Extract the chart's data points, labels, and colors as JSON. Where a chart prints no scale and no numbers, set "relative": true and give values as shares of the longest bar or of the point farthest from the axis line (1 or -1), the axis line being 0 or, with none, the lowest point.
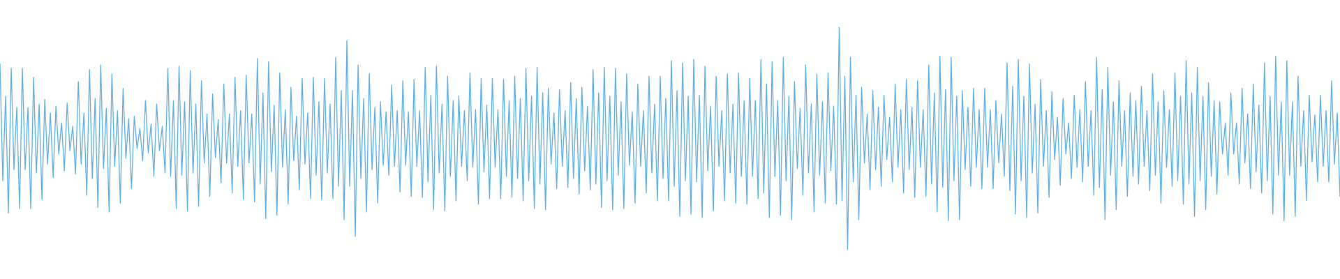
{
  "chart_data": {
    "type": "line",
    "relative": true,
    "categories": [
      null,
      null,
      null,
      null,
      null,
      null,
      null,
      null,
      null,
      null,
      null,
      null,
      null,
      null,
      null,
      null,
      null,
      null,
      null,
      null,
      null,
      null,
      null,
      null,
      null,
      null,
      null,
      null,
      null,
      null,
      null,
      null,
      null,
      null,
      null,
      null,
      null,
      null,
      null,
      null,
      null,
      null,
      null,
      null,
      null,
      null,
      null,
      null,
      null,
      null,
      null,
      null,
      null,
      null,
      null,
      null,
      null,
      null,
      null,
      null,
      null,
      null,
      null,
      null,
      null,
      null,
      null,
      null,
      null,
      null,
      null,
      null,
      null,
      null,
      null,
      null,
      null,
      null,
      null,
      null,
      null,
      null,
      null,
      null,
      null,
      null,
      null,
      null,
      null,
      null,
      null,
      null,
      null,
      null,
      null,
      null,
      null,
      null,
      null,
      null,
      null,
      null,
      null,
      null,
      null,
      null,
      null,
      null,
      null,
      null,
      null,
      null,
      null,
      null,
      null,
      null,
      null,
      null,
      null,
      null,
      null,
      null,
      null,
      null,
      null,
      null,
      null,
      null,
      null,
      null,
      null,
      null,
      null,
      null,
      null,
      null,
      null,
      null,
      null,
      null,
      null,
      null,
      null,
      null,
      null,
      null,
      null,
      null,
      null,
      null,
      null,
      null,
      null,
      null,
      null,
      null,
      null,
      null,
      null,
      null,
      null,
      null,
      null,
      null,
      null,
      null,
      null,
      null,
      null,
      null,
      null,
      null,
      null,
      null,
      null,
      null,
      null,
      null,
      null,
      null,
      null,
      null,
      null,
      null,
      null,
      null,
      null,
      null,
      null,
      null,
      null,
      null,
      null,
      null,
      null,
      null,
      null,
      null,
      null,
      null,
      null,
      null,
      null,
      null,
      null,
      null,
      null,
      null,
      null,
      null,
      null,
      null,
      null,
      null,
      null,
      null,
      null,
      null,
      null,
      null,
      null,
      null,
      null,
      null,
      null,
      null,
      null,
      null,
      null,
      null,
      null,
      null,
      null,
      null,
      null,
      null,
      null,
      null,
      null,
      null,
      null,
      null,
      null,
      null,
      null,
      null,
      null,
      null,
      null,
      null,
      null,
      null,
      null,
      null,
      null,
      null,
      null,
      null,
      null,
      null,
      null,
      null,
      null,
      null,
      null,
      null,
      null,
      null,
      null,
      null,
      null,
      null,
      null,
      null,
      null,
      null,
      null,
      null,
      null,
      null,
      null,
      null,
      null,
      null,
      null,
      null,
      null,
      null,
      null,
      null,
      null,
      null,
      null,
      null,
      null,
      null,
      null,
      null,
      null,
      null,
      null,
      null,
      null,
      null,
      null,
      null,
      null,
      null,
      null,
      null,
      null,
      null,
      null,
      null,
      null,
      null,
      null,
      null,
      null,
      null,
      null,
      null,
      null,
      null,
      null,
      null,
      null,
      null,
      null,
      null,
      null,
      null,
      null,
      null,
      null,
      null,
      null,
      null,
      null,
      null,
      null,
      null,
      null,
      null,
      null,
      null,
      null,
      null,
      null,
      null,
      null,
      null,
      null,
      null,
      null,
      null,
      null,
      null,
      null,
      null,
      null,
      null,
      null,
      null,
      null,
      null,
      null,
      null,
      null,
      null,
      null,
      null,
      null,
      null,
      null,
      null,
      null,
      null,
      null,
      null,
      null,
      null,
      null,
      null,
      null,
      null,
      null,
      null,
      null,
      null,
      null,
      null,
      null,
      null,
      null,
      null,
      null,
      null,
      null,
      null,
      null,
      null,
      null,
      null,
      null,
      null,
      null,
      null,
      null,
      null,
      null,
      null,
      null,
      null,
      null,
      null,
      null,
      null,
      null,
      null,
      null,
      null,
      null,
      null,
      null,
      null,
      null,
      null,
      null,
      null,
      null,
      null,
      null,
      null,
      null,
      null,
      null,
      null,
      null,
      null,
      null,
      null,
      null,
      null,
      null,
      null,
      null,
      null,
      null,
      null,
      null,
      null,
      null,
      null,
      null,
      null,
      null,
      null,
      null,
      null,
      null,
      null,
      null,
      null,
      null,
      null,
      null,
      null,
      null,
      null,
      null,
      null,
      null,
      null,
      null,
      null,
      null,
      null,
      null,
      null
    ],
    "series": [
      {
        "color": "#5dade2",
        "values": [
          0.835,
          0.31,
          0.69,
          0.165,
          0.815,
          0.36,
          0.64,
          0.185,
          0.815,
          0.36,
          0.64,
          0.185,
          0.775,
          0.345,
          0.655,
          0.225,
          0.675,
          0.385,
          0.615,
          0.325,
          0.645,
          0.43,
          0.57,
          0.355,
          0.66,
          0.445,
          0.555,
          0.34,
          0.755,
          0.385,
          0.615,
          0.245,
          0.81,
          0.32,
          0.68,
          0.19,
          0.83,
          0.365,
          0.635,
          0.17,
          0.79,
          0.375,
          0.625,
          0.21,
          0.725,
          0.41,
          0.59,
          0.275,
          0.6,
          0.455,
          0.545,
          0.4,
          0.67,
          0.435,
          0.565,
          0.33,
          0.655,
          0.445,
          0.555,
          0.345,
          0.815,
          0.33,
          0.67,
          0.185,
          0.825,
          0.335,
          0.665,
          0.175,
          0.805,
          0.345,
          0.655,
          0.195,
          0.76,
          0.39,
          0.61,
          0.24,
          0.7,
          0.415,
          0.585,
          0.3,
          0.745,
          0.39,
          0.61,
          0.255,
          0.775,
          0.375,
          0.625,
          0.225,
          0.785,
          0.39,
          0.61,
          0.215,
          0.86,
          0.295,
          0.705,
          0.14,
          0.845,
          0.35,
          0.65,
          0.155,
          0.795,
          0.37,
          0.63,
          0.205,
          0.73,
          0.4,
          0.6,
          0.27,
          0.77,
          0.385,
          0.615,
          0.23,
          0.775,
          0.335,
          0.665,
          0.225,
          0.77,
          0.345,
          0.655,
          0.23,
          0.865,
          0.285,
          0.715,
          0.135,
          0.94,
          0.285,
          0.715,
          0.06,
          0.83,
          0.32,
          0.68,
          0.17,
          0.79,
          0.36,
          0.64,
          0.21,
          0.665,
          0.38,
          0.62,
          0.335,
          0.74,
          0.375,
          0.625,
          0.26,
          0.76,
          0.38,
          0.62,
          0.24,
          0.765,
          0.375,
          0.625,
          0.235,
          0.82,
          0.305,
          0.695,
          0.18,
          0.825,
          0.345,
          0.655,
          0.175,
          0.78,
          0.33,
          0.67,
          0.22,
          0.69,
          0.375,
          0.625,
          0.31,
          0.795,
          0.37,
          0.63,
          0.205,
          0.77,
          0.35,
          0.65,
          0.23,
          0.77,
          0.37,
          0.63,
          0.23,
          0.765,
          0.33,
          0.67,
          0.235,
          0.78,
          0.32,
          0.68,
          0.22,
          0.815,
          0.31,
          0.69,
          0.185,
          0.82,
          0.295,
          0.705,
          0.18,
          0.725,
          0.385,
          0.615,
          0.275,
          0.72,
          0.375,
          0.625,
          0.28,
          0.75,
          0.32,
          0.68,
          0.25,
          0.73,
          0.355,
          0.645,
          0.27,
          0.81,
          0.295,
          0.705,
          0.19,
          0.82,
          0.31,
          0.69,
          0.18,
          0.815,
          0.335,
          0.665,
          0.185,
          0.79,
          0.38,
          0.62,
          0.21,
          0.745,
          0.375,
          0.625,
          0.255,
          0.78,
          0.345,
          0.655,
          0.22,
          0.78,
          0.32,
          0.68,
          0.22,
          0.85,
          0.285,
          0.715,
          0.15,
          0.84,
          0.31,
          0.69,
          0.16,
          0.855,
          0.305,
          0.695,
          0.145,
          0.825,
          0.355,
          0.645,
          0.175,
          0.78,
          0.375,
          0.625,
          0.22,
          0.79,
          0.345,
          0.655,
          0.21,
          0.795,
          0.33,
          0.67,
          0.205,
          0.77,
          0.33,
          0.67,
          0.23,
          0.855,
          0.255,
          0.745,
          0.145,
          0.845,
          0.33,
          0.67,
          0.155,
          0.865,
          0.31,
          0.69,
          0.135,
          0.755,
          0.365,
          0.635,
          0.245,
          0.83,
          0.345,
          0.655,
          0.17,
          0.79,
          0.335,
          0.665,
          0.21,
          0.795,
          0.355,
          0.645,
          0.205,
          1,
          0.22,
          0.78,
          0,
          0.865,
          0.305,
          0.695,
          0.135,
          0.73,
          0.39,
          0.61,
          0.27,
          0.715,
          0.36,
          0.64,
          0.285,
          0.695,
          0.405,
          0.595,
          0.305,
          0.745,
          0.37,
          0.63,
          0.255,
          0.765,
          0.36,
          0.64,
          0.235,
          0.76,
          0.37,
          0.63,
          0.24,
          0.83,
          0.295,
          0.705,
          0.17,
          0.87,
          0.28,
          0.72,
          0.13,
          0.865,
          0.31,
          0.69,
          0.135,
          0.715,
          0.36,
          0.64,
          0.285,
          0.725,
          0.37,
          0.63,
          0.275,
          0.725,
          0.37,
          0.63,
          0.275,
          0.67,
          0.39,
          0.61,
          0.33,
          0.84,
          0.265,
          0.735,
          0.16,
          0.855,
          0.31,
          0.69,
          0.145,
          0.835,
          0.345,
          0.655,
          0.165,
          0.765,
          0.375,
          0.625,
          0.235,
          0.71,
          0.405,
          0.595,
          0.29,
          0.68,
          0.43,
          0.57,
          0.32,
          0.695,
          0.37,
          0.63,
          0.305,
          0.755,
          0.375,
          0.625,
          0.245,
          0.865,
          0.28,
          0.72,
          0.135,
          0.82,
          0.335,
          0.665,
          0.18,
          0.76,
          0.375,
          0.625,
          0.24,
          0.705,
          0.33,
          0.67,
          0.295,
          0.735,
          0.375,
          0.625,
          0.265,
          0.79,
          0.335,
          0.665,
          0.21,
          0.715,
          0.37,
          0.63,
          0.285,
          0.795,
          0.31,
          0.69,
          0.205,
          0.85,
          0.295,
          0.705,
          0.15,
          0.82,
          0.31,
          0.69,
          0.18,
          0.75,
          0.33,
          0.67,
          0.25,
          0.665,
          0.43,
          0.57,
          0.335,
          0.705,
          0.43,
          0.57,
          0.295,
          0.725,
          0.39,
          0.61,
          0.275,
          0.745,
          0.35,
          0.65,
          0.255,
          0.84,
          0.31,
          0.69,
          0.16,
          0.87,
          0.335,
          0.665,
          0.13,
          0.85,
          0.335,
          0.665,
          0.15,
          0.78,
          0.375,
          0.625,
          0.22,
          0.695,
          0.395,
          0.605,
          0.305,
          0.695,
          0.375,
          0.625,
          0.305,
          0.76,
          0.385,
          0.615,
          0.24
        ]
      }
    ]
  }
}
